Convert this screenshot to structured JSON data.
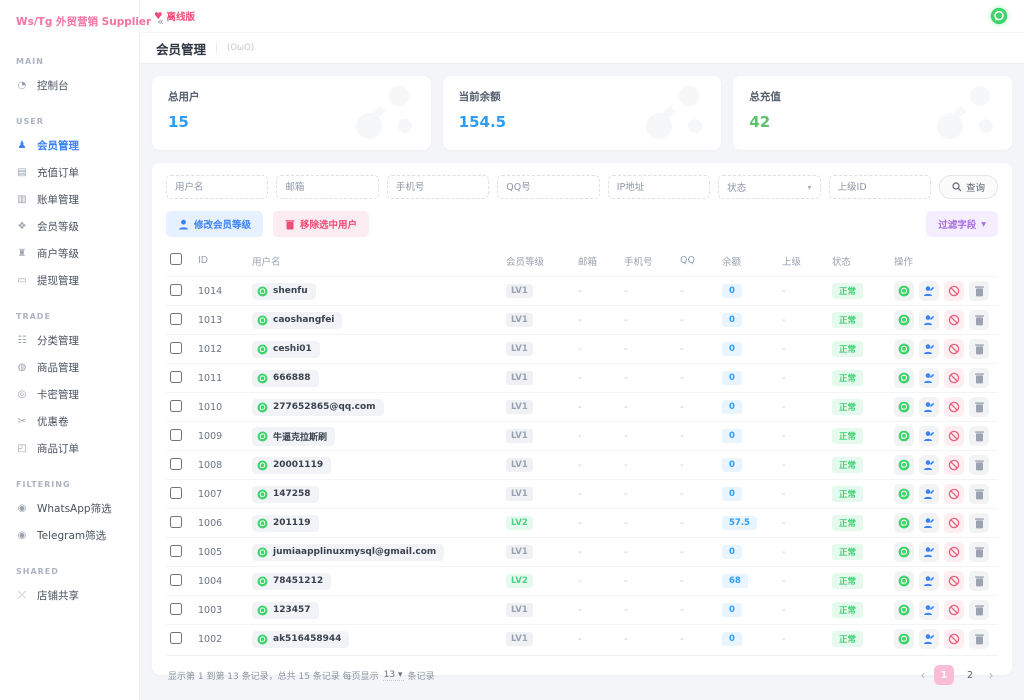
{
  "colors": {
    "brand_pink": "#f1739f",
    "alert_pink": "#ed4c78",
    "primary_blue": "#3b82f6",
    "success_green": "#3ecf72",
    "purple": "#a96fe3"
  },
  "sidebar": {
    "brand": "Ws/Tg 外贸营销 Supplier",
    "collapse_glyph": "«",
    "sections": [
      {
        "label": "MAIN",
        "items": [
          {
            "key": "dashboard",
            "label": "控制台",
            "icon": "dashboard-icon",
            "glyph": "◔",
            "active": false
          }
        ]
      },
      {
        "label": "USER",
        "items": [
          {
            "key": "members",
            "label": "会员管理",
            "icon": "members-icon",
            "glyph": "♟",
            "active": true
          },
          {
            "key": "recharge-orders",
            "label": "充值订单",
            "icon": "card-icon",
            "glyph": "▤",
            "active": false
          },
          {
            "key": "billing",
            "label": "账单管理",
            "icon": "bill-icon",
            "glyph": "▥",
            "active": false
          },
          {
            "key": "member-levels",
            "label": "会员等级",
            "icon": "level-icon",
            "glyph": "❖",
            "active": false
          },
          {
            "key": "merchant-levels",
            "label": "商户等级",
            "icon": "rank-icon",
            "glyph": "♜",
            "active": false
          },
          {
            "key": "withdrawals",
            "label": "提现管理",
            "icon": "wallet-icon",
            "glyph": "▭",
            "active": false
          }
        ]
      },
      {
        "label": "TRADE",
        "items": [
          {
            "key": "categories",
            "label": "分类管理",
            "icon": "category-icon",
            "glyph": "☷",
            "active": false
          },
          {
            "key": "products",
            "label": "商品管理",
            "icon": "product-icon",
            "glyph": "◍",
            "active": false
          },
          {
            "key": "card-keys",
            "label": "卡密管理",
            "icon": "key-icon",
            "glyph": "◎",
            "active": false
          },
          {
            "key": "coupons",
            "label": "优惠卷",
            "icon": "coupon-icon",
            "glyph": "✂",
            "active": false
          },
          {
            "key": "product-orders",
            "label": "商品订单",
            "icon": "order-icon",
            "glyph": "◰",
            "active": false
          }
        ]
      },
      {
        "label": "FILTERING",
        "items": [
          {
            "key": "whatsapp-filter",
            "label": "WhatsApp筛选",
            "icon": "whatsapp-icon",
            "glyph": "◉",
            "active": false
          },
          {
            "key": "telegram-filter",
            "label": "Telegram筛选",
            "icon": "telegram-icon",
            "glyph": "◉",
            "active": false
          }
        ]
      },
      {
        "label": "SHARED",
        "items": [
          {
            "key": "shop-sharing",
            "label": "店铺共享",
            "icon": "share-icon",
            "glyph": "⤫",
            "active": false
          }
        ]
      }
    ]
  },
  "topbar": {
    "offline_heart": "♥",
    "offline_label": "离线版"
  },
  "page": {
    "title": "会员管理",
    "subtitle": "(OωO)"
  },
  "stats": [
    {
      "label": "总用户",
      "value": "15",
      "color": "#2d9cf4"
    },
    {
      "label": "当前余额",
      "value": "154.5",
      "color": "#2d9cf4"
    },
    {
      "label": "总充值",
      "value": "42",
      "color": "#5ec26a"
    }
  ],
  "filters": {
    "username_placeholder": "用户名",
    "email_placeholder": "邮箱",
    "phone_placeholder": "手机号",
    "qq_placeholder": "QQ号",
    "ip_placeholder": "IP地址",
    "status_label": "状态",
    "parent_placeholder": "上级ID",
    "search_label": "查询"
  },
  "actions": {
    "edit_level_label": "修改会员等级",
    "remove_selected_label": "移除选中用户",
    "filter_fields_label": "过滤字段"
  },
  "table": {
    "headers": [
      "ID",
      "用户名",
      "会员等级",
      "邮箱",
      "手机号",
      "QQ",
      "余额",
      "上级",
      "状态",
      "操作"
    ],
    "rows": [
      {
        "id": "1014",
        "username": "shenfu",
        "level": "LV1",
        "level_style": "gray",
        "email": "-",
        "phone": "-",
        "qq": "-",
        "balance": "0",
        "parent": "-",
        "status": "正常"
      },
      {
        "id": "1013",
        "username": "caoshangfei",
        "level": "LV1",
        "level_style": "gray",
        "email": "-",
        "phone": "-",
        "qq": "-",
        "balance": "0",
        "parent": "-",
        "status": "正常"
      },
      {
        "id": "1012",
        "username": "ceshi01",
        "level": "LV1",
        "level_style": "gray",
        "email": "-",
        "phone": "-",
        "qq": "-",
        "balance": "0",
        "parent": "-",
        "status": "正常"
      },
      {
        "id": "1011",
        "username": "666888",
        "level": "LV1",
        "level_style": "gray",
        "email": "-",
        "phone": "-",
        "qq": "-",
        "balance": "0",
        "parent": "-",
        "status": "正常"
      },
      {
        "id": "1010",
        "username": "277652865@qq.com",
        "level": "LV1",
        "level_style": "gray",
        "email": "-",
        "phone": "-",
        "qq": "-",
        "balance": "0",
        "parent": "-",
        "status": "正常"
      },
      {
        "id": "1009",
        "username": "牛逼克拉斯刷",
        "level": "LV1",
        "level_style": "gray",
        "email": "-",
        "phone": "-",
        "qq": "-",
        "balance": "0",
        "parent": "-",
        "status": "正常"
      },
      {
        "id": "1008",
        "username": "20001119",
        "level": "LV1",
        "level_style": "gray",
        "email": "-",
        "phone": "-",
        "qq": "-",
        "balance": "0",
        "parent": "-",
        "status": "正常"
      },
      {
        "id": "1007",
        "username": "147258",
        "level": "LV1",
        "level_style": "gray",
        "email": "-",
        "phone": "-",
        "qq": "-",
        "balance": "0",
        "parent": "-",
        "status": "正常"
      },
      {
        "id": "1006",
        "username": "201119",
        "level": "LV2",
        "level_style": "green",
        "email": "-",
        "phone": "-",
        "qq": "-",
        "balance": "57.5",
        "parent": "-",
        "status": "正常"
      },
      {
        "id": "1005",
        "username": "jumiaapplinuxmysql@gmail.com",
        "level": "LV1",
        "level_style": "gray",
        "email": "-",
        "phone": "-",
        "qq": "-",
        "balance": "0",
        "parent": "-",
        "status": "正常"
      },
      {
        "id": "1004",
        "username": "78451212",
        "level": "LV2",
        "level_style": "green",
        "email": "-",
        "phone": "-",
        "qq": "-",
        "balance": "68",
        "parent": "-",
        "status": "正常"
      },
      {
        "id": "1003",
        "username": "123457",
        "level": "LV1",
        "level_style": "gray",
        "email": "-",
        "phone": "-",
        "qq": "-",
        "balance": "0",
        "parent": "-",
        "status": "正常"
      },
      {
        "id": "1002",
        "username": "ak516458944",
        "level": "LV1",
        "level_style": "gray",
        "email": "-",
        "phone": "-",
        "qq": "-",
        "balance": "0",
        "parent": "-",
        "status": "正常"
      }
    ]
  },
  "pagination": {
    "summary_prefix": "显示第 1 到第 13 条记录，总共 15 条记录 每页显示",
    "page_size": "13",
    "summary_suffix": "条记录",
    "pages": [
      "1",
      "2"
    ],
    "active_page": "1",
    "prev_glyph": "‹",
    "next_glyph": "›"
  }
}
